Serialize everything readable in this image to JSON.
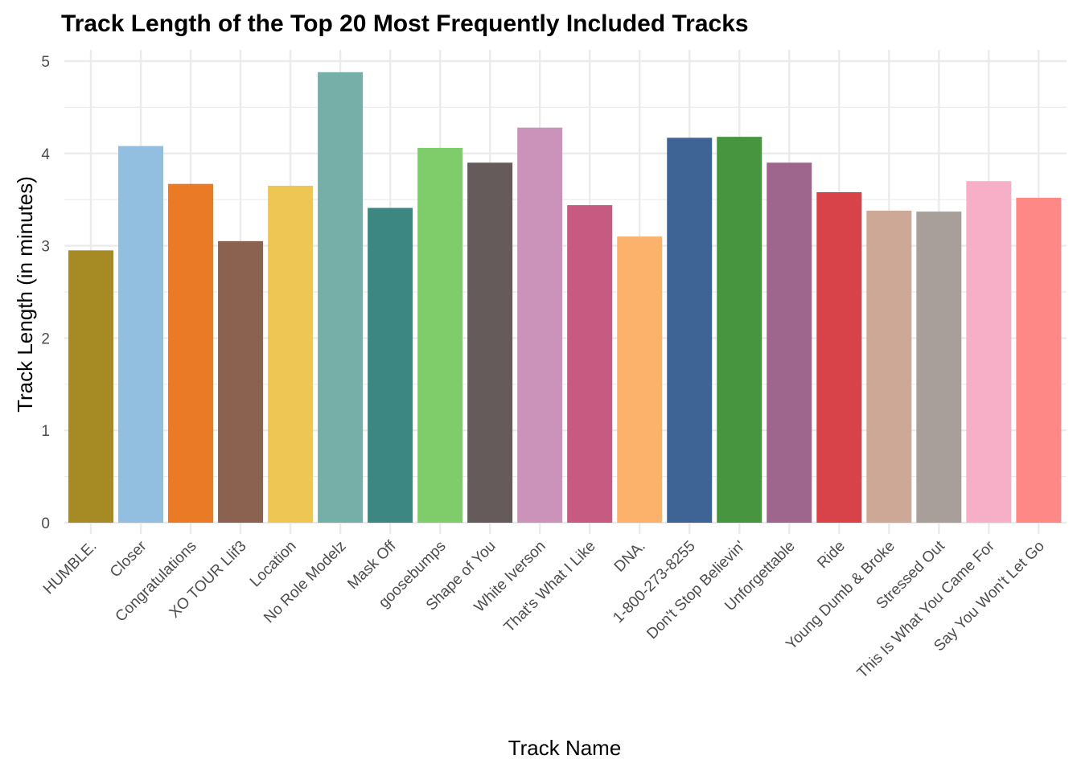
{
  "chart_data": {
    "type": "bar",
    "title": "Track Length of the Top 20 Most Frequently Included Tracks",
    "xlabel": "Track Name",
    "ylabel": "Track Length (in minutes)",
    "ylim": [
      0,
      5.05
    ],
    "yticks": [
      "0",
      "1",
      "2",
      "3",
      "4",
      "5"
    ],
    "grid": true,
    "legend": "none",
    "categories": [
      "HUMBLE.",
      "Closer",
      "Congratulations",
      "XO TOUR Llif3",
      "Location",
      "No Role Modelz",
      "Mask Off",
      "goosebumps",
      "Shape of You",
      "White Iverson",
      "That's What I Like",
      "DNA.",
      "1-800-273-8255",
      "Don't Stop Believin'",
      "Unforgettable",
      "Ride",
      "Young Dumb & Broke",
      "Stressed Out",
      "This Is What You Came For",
      "Say You Won't Let Go"
    ],
    "values": [
      2.95,
      4.08,
      3.67,
      3.05,
      3.65,
      4.88,
      3.41,
      4.06,
      3.9,
      4.28,
      3.44,
      3.1,
      4.17,
      4.18,
      3.9,
      3.58,
      3.38,
      3.37,
      3.7,
      3.52
    ],
    "colors": [
      "#A68A24",
      "#92BEE0",
      "#EB7A26",
      "#8B6250",
      "#EDC654",
      "#76AFA7",
      "#3C8781",
      "#7ECC6A",
      "#655B5A",
      "#CB93BA",
      "#C75A81",
      "#FDB26C",
      "#3E6496",
      "#48953F",
      "#9E658D",
      "#D84249",
      "#CDA897",
      "#A99F9A",
      "#F6AFC7",
      "#FD8886"
    ]
  }
}
